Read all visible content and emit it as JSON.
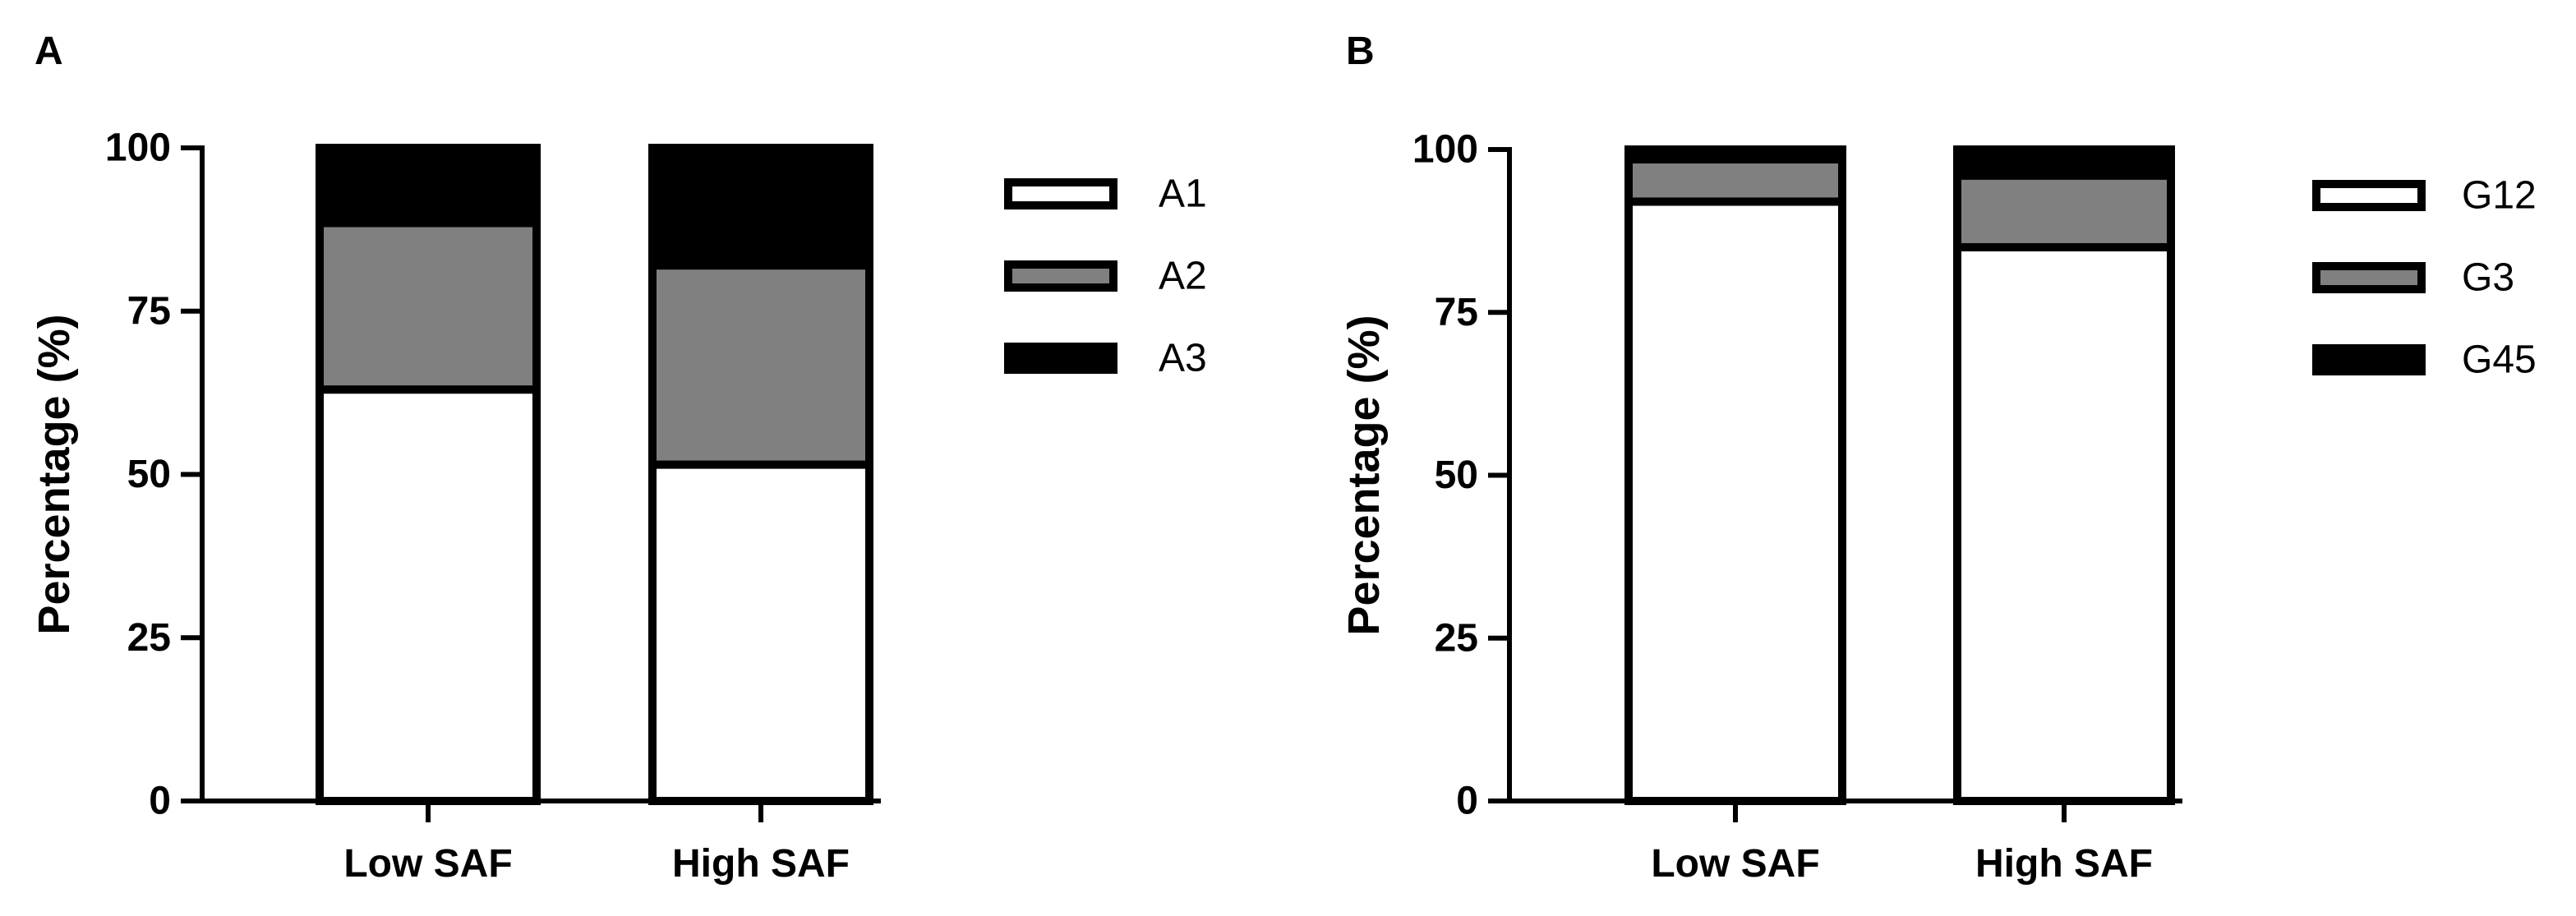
{
  "chart_data": [
    {
      "panel": "A",
      "type": "bar",
      "stacked": true,
      "categories": [
        "Low SAF",
        "High SAF"
      ],
      "series": [
        {
          "name": "A1",
          "color": "#ffffff",
          "values": [
            63,
            51.5
          ]
        },
        {
          "name": "A2",
          "color": "#808080",
          "values": [
            25.5,
            30.5
          ]
        },
        {
          "name": "A3",
          "color": "#000000",
          "values": [
            11.5,
            18
          ]
        }
      ],
      "ylabel": "Percentage (%)",
      "ylim": [
        0,
        100
      ],
      "yticks": [
        0,
        25,
        50,
        75,
        100
      ],
      "legend": "right"
    },
    {
      "panel": "B",
      "type": "bar",
      "stacked": true,
      "categories": [
        "Low SAF",
        "High SAF"
      ],
      "series": [
        {
          "name": "G12",
          "color": "#ffffff",
          "values": [
            92,
            85
          ]
        },
        {
          "name": "G3",
          "color": "#808080",
          "values": [
            6.5,
            11
          ]
        },
        {
          "name": "G45",
          "color": "#000000",
          "values": [
            1.5,
            4
          ]
        }
      ],
      "ylabel": "Percentage (%)",
      "ylim": [
        0,
        100
      ],
      "yticks": [
        0,
        25,
        50,
        75,
        100
      ],
      "legend": "right"
    }
  ]
}
